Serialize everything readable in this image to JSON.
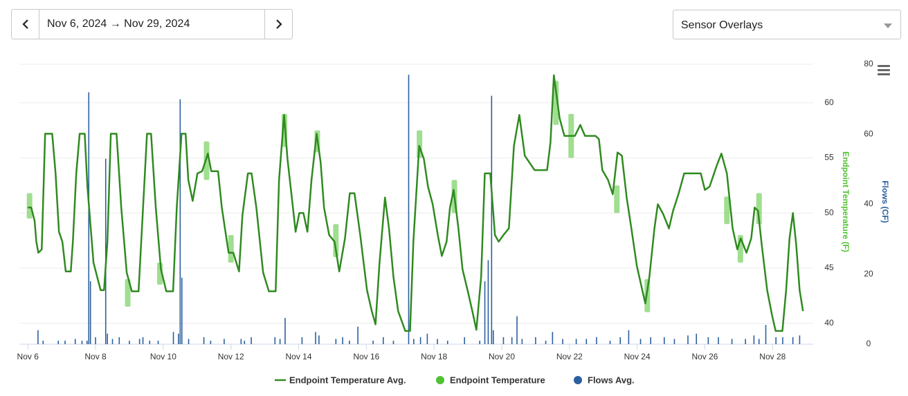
{
  "date_range": {
    "label": "Nov 6, 2024 → Nov 29, 2024"
  },
  "overlay_select": {
    "label": "Sensor Overlays"
  },
  "chart_data": {
    "type": "line",
    "xlim": [
      5.75,
      29.2
    ],
    "xticks": [
      {
        "value": 6,
        "label": "Nov 6"
      },
      {
        "value": 8,
        "label": "Nov 8"
      },
      {
        "value": 10,
        "label": "Nov 10"
      },
      {
        "value": 12,
        "label": "Nov 12"
      },
      {
        "value": 14,
        "label": "Nov 14"
      },
      {
        "value": 16,
        "label": "Nov 16"
      },
      {
        "value": 18,
        "label": "Nov 18"
      },
      {
        "value": 20,
        "label": "Nov 20"
      },
      {
        "value": 22,
        "label": "Nov 22"
      },
      {
        "value": 24,
        "label": "Nov 24"
      },
      {
        "value": 26,
        "label": "Nov 26"
      },
      {
        "value": 28,
        "label": "Nov 28"
      }
    ],
    "ylim": [
      38.1,
      63.5
    ],
    "yticks": [
      40,
      45,
      50,
      55,
      60
    ],
    "y_label": "Endpoint Temperature (F)",
    "y2lim": [
      0,
      80
    ],
    "y2ticks": [
      0,
      20,
      40,
      60,
      80
    ],
    "y2_label": "Flows (CF)",
    "grid": true,
    "legend": "bottom",
    "series": [
      {
        "name": "Endpoint Temperature Avg.",
        "color": "#2f8a1f",
        "x": [
          6.0,
          6.1,
          6.2,
          6.25,
          6.31,
          6.41,
          6.51,
          6.72,
          6.82,
          6.92,
          7.02,
          7.12,
          7.27,
          7.33,
          7.43,
          7.53,
          7.68,
          7.76,
          7.94,
          8.15,
          8.25,
          8.35,
          8.45,
          8.62,
          8.76,
          8.92,
          9.07,
          9.27,
          9.37,
          9.52,
          9.64,
          9.78,
          9.93,
          10.09,
          10.29,
          10.4,
          10.54,
          10.66,
          10.74,
          10.87,
          11.01,
          11.15,
          11.32,
          11.42,
          11.62,
          11.73,
          11.93,
          12.07,
          12.24,
          12.34,
          12.5,
          12.61,
          12.75,
          12.95,
          13.12,
          13.32,
          13.42,
          13.57,
          13.67,
          13.81,
          13.91,
          14.02,
          14.14,
          14.26,
          14.38,
          14.53,
          14.65,
          14.75,
          14.9,
          15.06,
          15.2,
          15.37,
          15.51,
          15.65,
          15.82,
          16.02,
          16.16,
          16.27,
          16.39,
          16.55,
          16.67,
          16.8,
          16.94,
          17.15,
          17.29,
          17.39,
          17.56,
          17.7,
          17.82,
          17.96,
          18.11,
          18.23,
          18.37,
          18.47,
          18.58,
          18.72,
          18.84,
          18.99,
          19.13,
          19.25,
          19.39,
          19.5,
          19.66,
          19.8,
          19.91,
          20.05,
          20.21,
          20.36,
          20.52,
          20.68,
          20.97,
          21.34,
          21.44,
          21.54,
          21.71,
          21.85,
          22.16,
          22.32,
          22.46,
          22.77,
          22.87,
          22.97,
          23.14,
          23.28,
          23.42,
          23.55,
          23.69,
          23.83,
          23.99,
          24.24,
          24.36,
          24.51,
          24.61,
          24.77,
          24.94,
          25.06,
          25.22,
          25.39,
          25.88,
          26.0,
          26.14,
          26.35,
          26.49,
          26.65,
          26.82,
          26.96,
          27.06,
          27.23,
          27.37,
          27.47,
          27.57,
          27.68,
          27.84,
          27.98,
          28.09,
          28.29,
          28.4,
          28.5,
          28.6,
          28.7,
          28.8,
          28.9
        ],
        "values": [
          50.5,
          50.5,
          49.3,
          47.4,
          46.4,
          46.7,
          57.2,
          57.2,
          53.6,
          48.3,
          47.4,
          44.7,
          44.7,
          47.4,
          53.6,
          57.2,
          57.2,
          52.4,
          45.5,
          43.0,
          43.0,
          47.4,
          57.2,
          57.2,
          50.5,
          44.6,
          42.9,
          42.9,
          48.6,
          57.2,
          57.2,
          50.5,
          44.9,
          42.9,
          42.9,
          50.5,
          57.2,
          57.2,
          53.0,
          51.1,
          53.6,
          53.8,
          55.4,
          53.8,
          53.8,
          50.5,
          46.4,
          46.4,
          44.7,
          49.8,
          53.6,
          53.6,
          50.5,
          44.6,
          42.9,
          42.9,
          53.0,
          58.9,
          54.9,
          51.1,
          48.3,
          50.0,
          50.0,
          48.3,
          53.0,
          57.2,
          54.6,
          50.5,
          48.0,
          47.4,
          44.7,
          47.7,
          51.8,
          51.8,
          48.0,
          43.0,
          41.1,
          39.9,
          45.5,
          51.4,
          48.6,
          44.2,
          41.1,
          39.3,
          39.3,
          47.4,
          56.1,
          54.9,
          52.4,
          50.8,
          48.0,
          46.1,
          47.4,
          50.5,
          52.1,
          48.6,
          44.9,
          43.0,
          41.1,
          39.4,
          44.2,
          53.6,
          53.6,
          48.0,
          47.4,
          48.0,
          48.6,
          56.1,
          58.9,
          55.2,
          53.9,
          53.9,
          56.4,
          62.5,
          58.6,
          57.0,
          57.0,
          58.0,
          57.0,
          57.0,
          56.7,
          53.9,
          53.0,
          51.7,
          55.5,
          55.2,
          51.4,
          48.6,
          45.2,
          41.8,
          44.2,
          48.6,
          50.8,
          49.9,
          48.6,
          50.2,
          51.7,
          53.6,
          53.6,
          52.1,
          52.4,
          54.3,
          55.4,
          53.6,
          48.6,
          46.7,
          47.7,
          46.4,
          47.7,
          50.5,
          50.2,
          47.1,
          43.0,
          40.8,
          39.3,
          39.3,
          43.0,
          47.7,
          50.0,
          47.1,
          43.0,
          41.1
        ]
      },
      {
        "name": "Endpoint Temperature",
        "color": "#52c234",
        "x": [
          6.05,
          8.95,
          9.9,
          11.28,
          12.0,
          13.58,
          14.55,
          15.1,
          17.57,
          18.6,
          21.6,
          22.05,
          23.4,
          24.3,
          26.65,
          27.05,
          27.6
        ],
        "low": [
          49.5,
          41.5,
          43.5,
          53.0,
          45.5,
          56.0,
          55.5,
          46.0,
          55.0,
          50.0,
          58.0,
          55.0,
          50.0,
          41.0,
          49.0,
          45.5,
          49.0
        ],
        "high": [
          51.8,
          44.0,
          45.5,
          56.5,
          48.0,
          59.0,
          57.5,
          49.0,
          57.5,
          53.0,
          62.0,
          59.0,
          52.5,
          44.0,
          51.5,
          48.0,
          51.8
        ]
      },
      {
        "name": "Flows Avg.",
        "color": "#2b5f9e",
        "axis": "y2",
        "type": "bar",
        "x": [
          6.3,
          6.45,
          6.9,
          7.1,
          7.4,
          7.6,
          7.75,
          7.8,
          7.85,
          8.0,
          8.3,
          8.35,
          8.5,
          8.7,
          9.0,
          9.3,
          9.4,
          9.6,
          9.85,
          10.3,
          10.45,
          10.5,
          10.55,
          10.75,
          11.2,
          11.4,
          11.8,
          12.3,
          12.4,
          12.6,
          13.3,
          13.45,
          13.6,
          14.1,
          14.5,
          14.6,
          15.1,
          15.3,
          15.5,
          15.75,
          16.2,
          16.5,
          16.8,
          17.25,
          17.4,
          17.6,
          17.8,
          18.1,
          18.4,
          18.9,
          19.35,
          19.5,
          19.6,
          19.7,
          19.75,
          20.05,
          20.3,
          20.45,
          20.6,
          21.0,
          21.3,
          21.5,
          21.8,
          22.2,
          22.5,
          22.8,
          23.2,
          23.5,
          23.75,
          24.1,
          24.4,
          24.8,
          25.1,
          25.5,
          25.75,
          26.1,
          26.4,
          26.8,
          27.2,
          27.45,
          27.6,
          27.8,
          28.1,
          28.3,
          28.6,
          28.8
        ],
        "values": [
          4,
          1,
          1,
          1,
          1.5,
          1,
          1,
          72,
          18,
          2,
          53,
          3,
          1.5,
          2,
          1,
          1.5,
          2,
          1,
          1,
          3.5,
          3,
          70,
          19,
          1.5,
          2,
          1,
          1.5,
          1.5,
          1,
          2,
          2,
          1.5,
          7.5,
          2,
          3.5,
          2.5,
          1.5,
          2,
          1,
          5,
          1,
          2,
          1,
          77,
          1.5,
          2,
          3,
          1.5,
          1,
          2,
          1,
          18,
          24,
          71,
          4,
          2,
          2,
          8,
          1.5,
          2,
          1,
          3.5,
          1.5,
          1.5,
          1.5,
          2,
          1,
          2,
          4,
          1.5,
          2,
          2,
          1.5,
          2.5,
          3,
          2,
          2,
          1.5,
          1.5,
          2.5,
          1.5,
          5.5,
          2,
          2,
          2,
          2.5
        ]
      }
    ]
  }
}
